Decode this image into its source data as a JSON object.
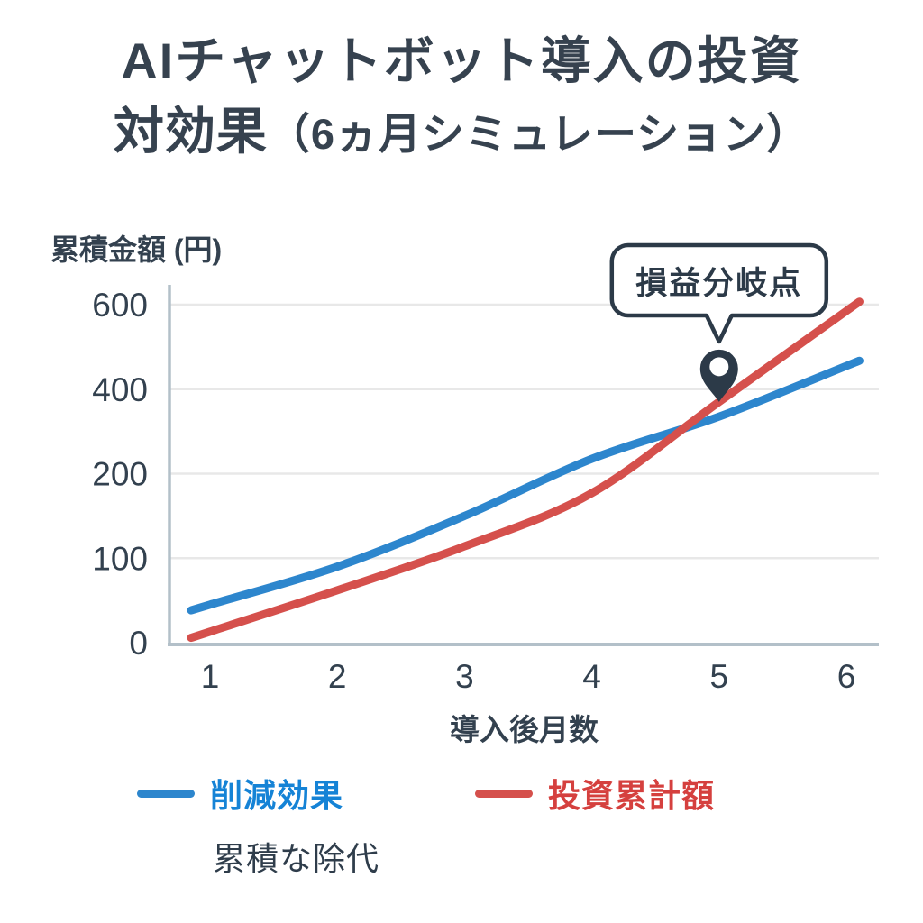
{
  "title": {
    "line1": "AIチャットボット導入の投資",
    "line2_main": "対効果",
    "line2_paren": "（6ヵ月シミュレーション）"
  },
  "y_axis": {
    "title": "累積金額 (円)"
  },
  "x_axis": {
    "title": "導入後月数"
  },
  "annotation": {
    "label": "損益分岐点"
  },
  "legend": {
    "items": [
      {
        "label": "削減効果",
        "line_color": "#2d86cd",
        "text_color": "#1583d6"
      },
      {
        "label": "投資累計額",
        "line_color": "#d5504c",
        "text_color": "#d5403e"
      }
    ],
    "note": "累積な除代"
  },
  "chart_data": {
    "type": "line",
    "title": "AIチャットボット導入の投資対効果（6ヵ月シミュレーション）",
    "xlabel": "導入後月数",
    "ylabel": "累積金額 (円)",
    "x": [
      1,
      2,
      3,
      4,
      5,
      6
    ],
    "x_ticks": [
      "1",
      "2",
      "3",
      "4",
      "5",
      "6"
    ],
    "y_ticks": [
      0,
      100,
      200,
      400,
      600
    ],
    "y_axis_type": "nonlinear: labeled ticks 0/100/200/400/600 are evenly spaced",
    "grid": true,
    "legend_position": "bottom",
    "series": [
      {
        "name": "削減効果",
        "color": "#2d86cd",
        "values": [
          45,
          90,
          150,
          235,
          335,
          455
        ]
      },
      {
        "name": "投資累計額",
        "color": "#d5504c",
        "values": [
          13,
          62,
          114,
          177,
          370,
          585
        ]
      }
    ],
    "annotation": {
      "label": "損益分岐点",
      "series": "投資累計額",
      "x": 5,
      "y": 370
    },
    "break_even_point": {
      "x": 4.6,
      "y": 300
    },
    "colors": {
      "grid": "#e8e8e8",
      "axis": "#b3c0c9",
      "tick_text": "#33414f",
      "pin": "#2c3a48"
    }
  }
}
